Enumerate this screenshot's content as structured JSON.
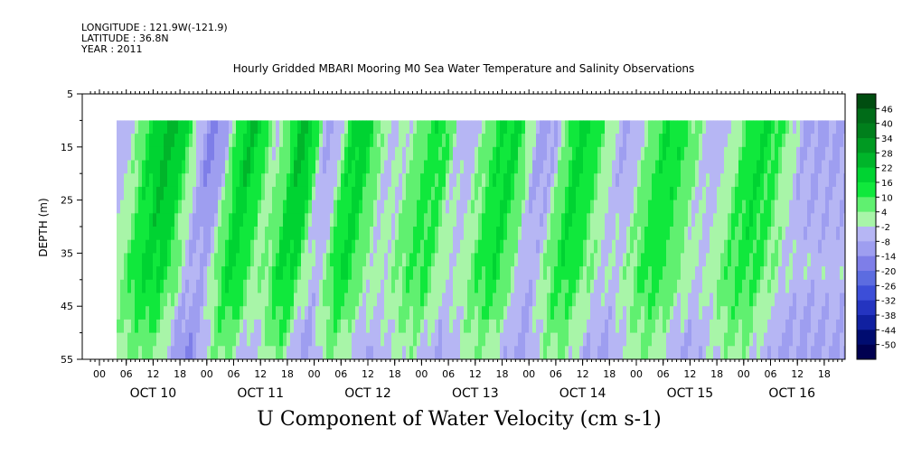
{
  "header": {
    "longitude": "LONGITUDE : 121.9W(-121.9)",
    "latitude": "LATITUDE : 36.8N",
    "year": "YEAR : 2011"
  },
  "chart_data": {
    "type": "heatmap",
    "title": "Hourly Gridded MBARI Mooring M0 Sea Water Temperature and Salinity Observations",
    "xlabel": "U Component of Water Velocity (cm s-1)",
    "ylabel": "DEPTH (m)",
    "y_ticks": [
      5,
      15,
      25,
      35,
      45,
      55
    ],
    "ylim": [
      55,
      5
    ],
    "data_depth_range": [
      10,
      55
    ],
    "x_hour_ticks": [
      "00",
      "06",
      "12",
      "18",
      "00",
      "06",
      "12",
      "18",
      "00",
      "06",
      "12",
      "18",
      "00",
      "06",
      "12",
      "18",
      "00",
      "06",
      "12",
      "18",
      "00",
      "06",
      "12",
      "18",
      "00",
      "06",
      "12",
      "18"
    ],
    "x_day_labels": [
      "OCT 10",
      "OCT 11",
      "OCT 12",
      "OCT 13",
      "OCT 14",
      "OCT 15",
      "OCT 16"
    ],
    "colorbar_levels": [
      46,
      40,
      34,
      28,
      22,
      16,
      10,
      4,
      -2,
      -8,
      -14,
      -20,
      -26,
      -32,
      -38,
      -44,
      -50
    ],
    "colorbar_colors": [
      "#004d10",
      "#006c18",
      "#007f1c",
      "#009a22",
      "#00b52a",
      "#00d332",
      "#10e83c",
      "#60f070",
      "#a8f5a8",
      "#b6b6f4",
      "#9e9ef0",
      "#7e7ee8",
      "#5c6ce0",
      "#3c4ed8",
      "#2434c0",
      "#1020a0",
      "#000c70",
      "#000050"
    ],
    "time_series_u": [
      {
        "hour": 4,
        "u": -14
      },
      {
        "hour": 16,
        "u": 18
      },
      {
        "hour": 26,
        "u": -22
      },
      {
        "hour": 34,
        "u": 16
      },
      {
        "hour": 40,
        "u": -6
      },
      {
        "hour": 46,
        "u": 18
      },
      {
        "hour": 52,
        "u": -16
      },
      {
        "hour": 58,
        "u": 14
      },
      {
        "hour": 66,
        "u": -10
      },
      {
        "hour": 76,
        "u": 8
      },
      {
        "hour": 82,
        "u": -12
      },
      {
        "hour": 92,
        "u": 12
      },
      {
        "hour": 100,
        "u": -18
      },
      {
        "hour": 108,
        "u": 12
      },
      {
        "hour": 118,
        "u": -14
      },
      {
        "hour": 128,
        "u": 10
      },
      {
        "hour": 138,
        "u": -12
      },
      {
        "hour": 148,
        "u": 10
      },
      {
        "hour": 160,
        "u": -16
      }
    ]
  }
}
